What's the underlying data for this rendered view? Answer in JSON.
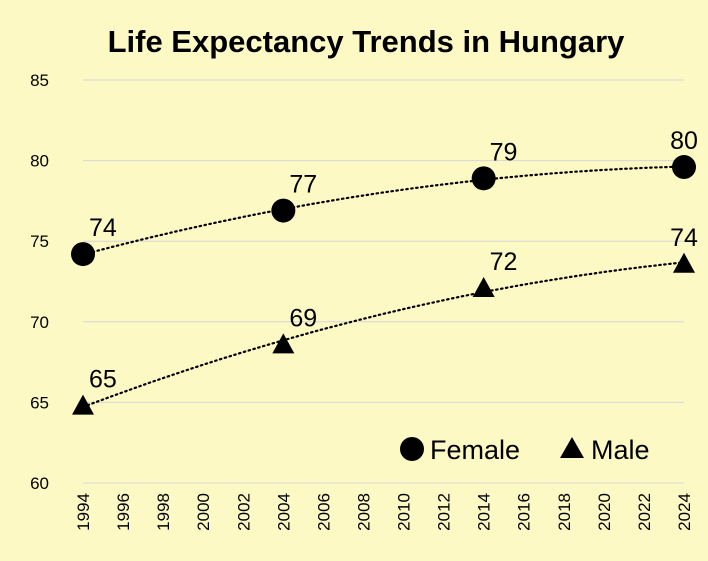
{
  "chart_data": {
    "type": "scatter",
    "title": "Life Expectancy Trends in Hungary",
    "xlabel": "",
    "ylabel": "",
    "xlim": [
      1994,
      2024
    ],
    "ylim": [
      60,
      85
    ],
    "x_ticks": [
      "1994",
      "1996",
      "1998",
      "2000",
      "2002",
      "2004",
      "2006",
      "2008",
      "2010",
      "2012",
      "2014",
      "2016",
      "2018",
      "2020",
      "2022",
      "2024"
    ],
    "y_ticks": [
      "60",
      "65",
      "70",
      "75",
      "80",
      "85"
    ],
    "grid": true,
    "legend_position": "bottom-right",
    "trendline": "polynomial, dotted",
    "series": [
      {
        "name": "Female",
        "marker": "circle",
        "x": [
          1994,
          2004,
          2014,
          2024
        ],
        "values": [
          74.2,
          76.9,
          78.9,
          79.6
        ],
        "labels": [
          "74",
          "77",
          "79",
          "80"
        ]
      },
      {
        "name": "Male",
        "marker": "triangle",
        "x": [
          1994,
          2004,
          2014,
          2024
        ],
        "values": [
          64.8,
          68.6,
          72.1,
          73.6
        ],
        "labels": [
          "65",
          "69",
          "72",
          "74"
        ]
      }
    ]
  }
}
